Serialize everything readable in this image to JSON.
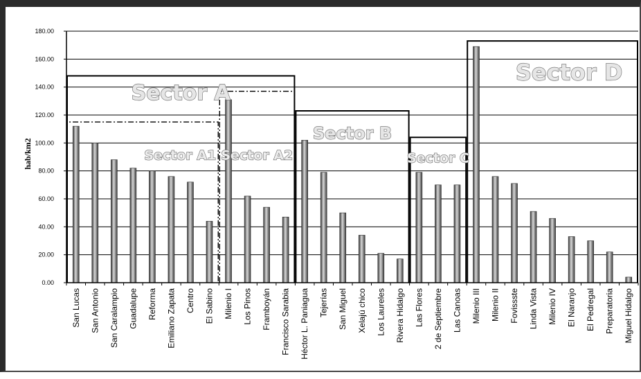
{
  "chart_data": {
    "type": "bar",
    "title": "",
    "xlabel": "",
    "ylabel": "hab/km2",
    "ylim": [
      0,
      180
    ],
    "yticks": [
      "0.00",
      "20.00",
      "40.00",
      "60.00",
      "80.00",
      "100.00",
      "120.00",
      "140.00",
      "160.00",
      "180.00"
    ],
    "grid": true,
    "categories": [
      "San Lucas",
      "San Antonio",
      "San Caralampio",
      "Guadalupe",
      "Reforma",
      "Emiliano Zapata",
      "Centro",
      "El Sabino",
      "Milenio I",
      "Los Pinos",
      "Framboyán",
      "Francisco Sarabia",
      "Héctor L. Paniagua",
      "Tejerías",
      "San Miguel",
      "Xelajú chico",
      "Los Laureles",
      "Rivera Hidalgo",
      "Las Flores",
      "2 de Septiembre",
      "Las Canoas",
      "Milenio III",
      "Milenio II",
      "Fovissste",
      "Linda Vista",
      "Milenio IV",
      "El Naranjo",
      "El Pedregal",
      "Preparatoria",
      "Miguel Hidalgo"
    ],
    "values": [
      112,
      100,
      88,
      82,
      80,
      76,
      72,
      44,
      131,
      62,
      54,
      47,
      102,
      79,
      50,
      34,
      21,
      17,
      79,
      70,
      70,
      169,
      76,
      71,
      51,
      46,
      33,
      30,
      22,
      4
    ],
    "sectors": [
      {
        "label": "Sector A",
        "from": 0,
        "to": 11,
        "level": 148,
        "style": "solid"
      },
      {
        "label": "Sector A1",
        "from": 0,
        "to": 7,
        "level": 115,
        "style": "dash-dot"
      },
      {
        "label": "Sector A2",
        "from": 8,
        "to": 11,
        "level": 137,
        "style": "dash-dot"
      },
      {
        "label": "Sector B",
        "from": 12,
        "to": 17,
        "level": 123,
        "style": "solid"
      },
      {
        "label": "Sector C",
        "from": 18,
        "to": 20,
        "level": 104,
        "style": "solid"
      },
      {
        "label": "Sector D",
        "from": 21,
        "to": 29,
        "level": 173,
        "style": "solid"
      }
    ],
    "colors": {
      "bar_dark": "#3c3c3c",
      "bar_light": "#d8d8d8",
      "grid": "#000000",
      "sector_text_fill": "#e6e6e6",
      "sector_text_stroke": "#7a7a7a"
    }
  }
}
